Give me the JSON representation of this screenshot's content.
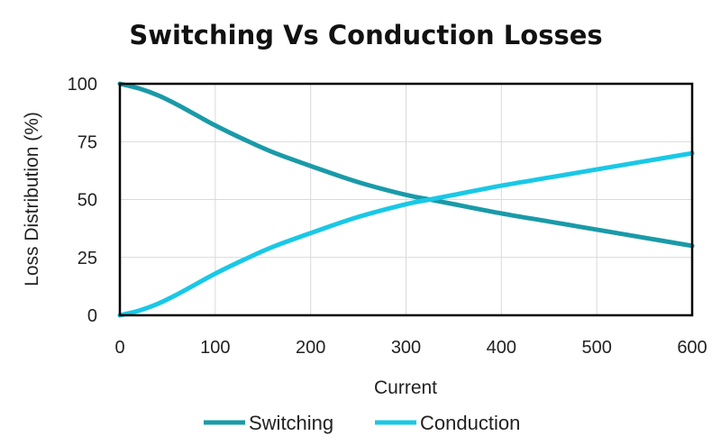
{
  "chart_data": {
    "type": "line",
    "title": "Switching Vs Conduction Losses",
    "xlabel": "Current",
    "ylabel": "Loss Distribution (%)",
    "xlim": [
      0,
      600
    ],
    "ylim": [
      0,
      100
    ],
    "x_ticks": [
      "0",
      "100",
      "200",
      "300",
      "400",
      "500",
      "600"
    ],
    "y_ticks": [
      "0",
      "25",
      "50",
      "75",
      "100"
    ],
    "grid": true,
    "legend_position": "bottom",
    "series": [
      {
        "name": "Switching",
        "color": "#1a9aa8",
        "x": [
          0,
          20,
          40,
          60,
          80,
          100,
          130,
          160,
          200,
          250,
          300,
          325,
          350,
          400,
          450,
          500,
          550,
          600
        ],
        "y": [
          100,
          98,
          95,
          91,
          86.5,
          82,
          76,
          70.5,
          64.5,
          57.5,
          52,
          50,
          48,
          44,
          40.5,
          37,
          33.5,
          30
        ]
      },
      {
        "name": "Conduction",
        "color": "#19c8e6",
        "x": [
          0,
          20,
          40,
          60,
          80,
          100,
          130,
          160,
          200,
          250,
          300,
          325,
          350,
          400,
          450,
          500,
          550,
          600
        ],
        "y": [
          0,
          2,
          5,
          9,
          13.5,
          18,
          24,
          29.5,
          35.5,
          42.5,
          48,
          50,
          52,
          56,
          59.5,
          63,
          66.5,
          70
        ]
      }
    ]
  }
}
